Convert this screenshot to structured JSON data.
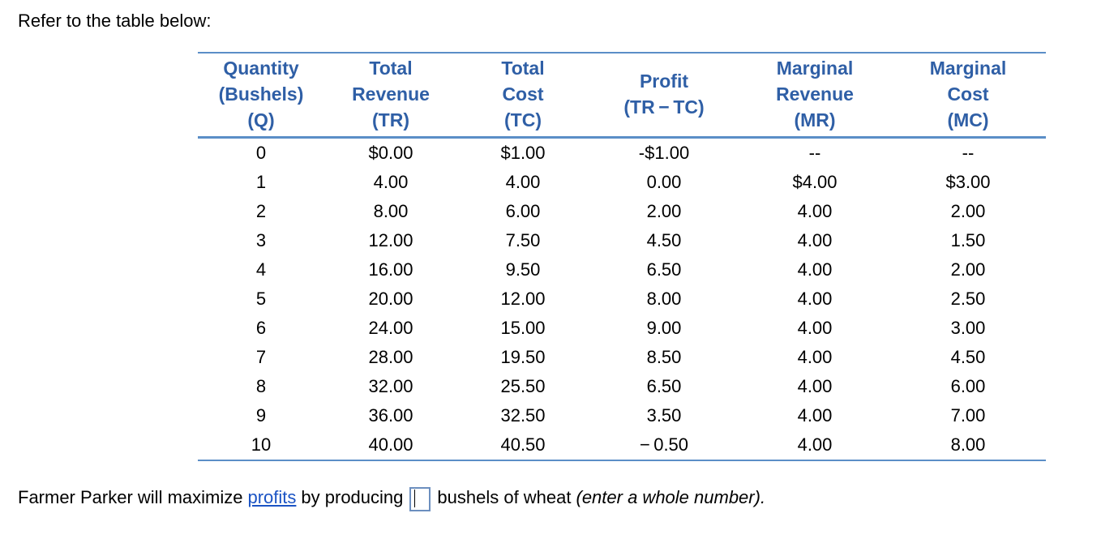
{
  "intro": "Refer to the table below:",
  "table": {
    "headers": [
      [
        "Quantity",
        "(Bushels)",
        "(Q)"
      ],
      [
        "Total",
        "Revenue",
        "(TR)"
      ],
      [
        "Total",
        "Cost",
        "(TC)"
      ],
      [
        "Profit",
        "(TR − TC)"
      ],
      [
        "Marginal",
        "Revenue",
        "(MR)"
      ],
      [
        "Marginal",
        "Cost",
        "(MC)"
      ]
    ],
    "rows": [
      [
        "0",
        "$0.00",
        "$1.00",
        "-$1.00",
        "--",
        "--"
      ],
      [
        "1",
        "4.00",
        "4.00",
        "0.00",
        "$4.00",
        "$3.00"
      ],
      [
        "2",
        "8.00",
        "6.00",
        "2.00",
        "4.00",
        "2.00"
      ],
      [
        "3",
        "12.00",
        "7.50",
        "4.50",
        "4.00",
        "1.50"
      ],
      [
        "4",
        "16.00",
        "9.50",
        "6.50",
        "4.00",
        "2.00"
      ],
      [
        "5",
        "20.00",
        "12.00",
        "8.00",
        "4.00",
        "2.50"
      ],
      [
        "6",
        "24.00",
        "15.00",
        "9.00",
        "4.00",
        "3.00"
      ],
      [
        "7",
        "28.00",
        "19.50",
        "8.50",
        "4.00",
        "4.50"
      ],
      [
        "8",
        "32.00",
        "25.50",
        "6.50",
        "4.00",
        "6.00"
      ],
      [
        "9",
        "36.00",
        "32.50",
        "3.50",
        "4.00",
        "7.00"
      ],
      [
        "10",
        "40.00",
        "40.50",
        "− 0.50",
        "4.00",
        "8.00"
      ]
    ]
  },
  "question": {
    "before_link": "Farmer Parker will maximize",
    "link": "profits",
    "after_link": "by producing",
    "answer_value": "",
    "after_box": "bushels of wheat",
    "hint": "(enter a whole number)."
  }
}
